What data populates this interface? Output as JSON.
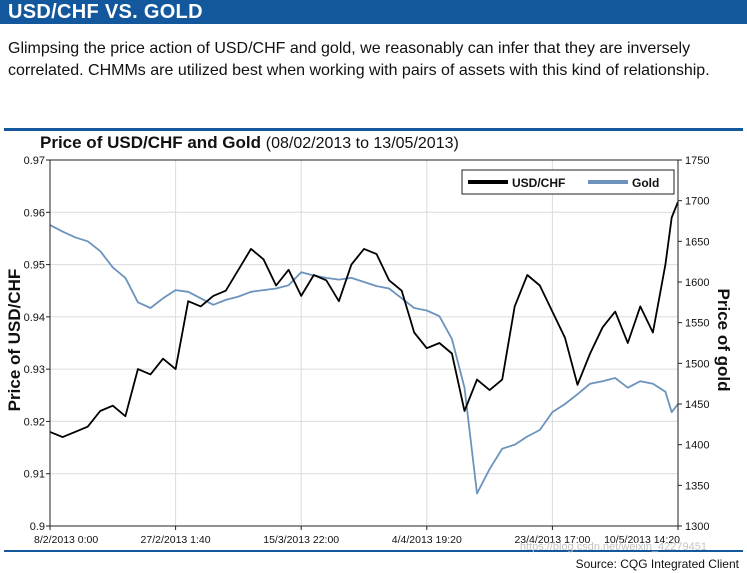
{
  "header": {
    "title": "USD/CHF VS. GOLD",
    "intro": "Glimpsing the price action of USD/CHF and gold, we reasonably can infer that they are inversely correlated. CHMMs are utilized best when working with pairs of assets with this kind of relationship."
  },
  "colors": {
    "banner": "#13589c",
    "usdchf": "#000000",
    "gold": "#6b93bd"
  },
  "chart_data": {
    "type": "line",
    "title": "Price of USD/CHF and Gold",
    "subtitle": "(08/02/2013 to 13/05/2013)",
    "ylabel": "Price of USD/CHF",
    "y2label": "Price of gold",
    "ylim": [
      0.9,
      0.97
    ],
    "y2lim": [
      1300,
      1750
    ],
    "yticks": [
      "0.97",
      "0.96",
      "0.95",
      "0.94",
      "0.93",
      "0.92",
      "0.91",
      "0.9"
    ],
    "y2ticks": [
      "1750",
      "1700",
      "1650",
      "1600",
      "1550",
      "1500",
      "1450",
      "1400",
      "1350",
      "1300"
    ],
    "xticks": [
      "8/2/2013 0:00",
      "27/2/2013 1:40",
      "15/3/2013 22:00",
      "4/4/2013 19:20",
      "23/4/2013 17:00",
      "10/5/2013 14:20"
    ],
    "xlim": [
      0,
      100
    ],
    "grid": true,
    "legend": "top-right",
    "series": [
      {
        "name": "USD/CHF",
        "axis": "left",
        "x": [
          0,
          2,
          4,
          6,
          8,
          10,
          12,
          14,
          16,
          18,
          20,
          22,
          24,
          26,
          28,
          30,
          32,
          34,
          36,
          38,
          40,
          42,
          44,
          46,
          48,
          50,
          52,
          54,
          56,
          58,
          60,
          62,
          64,
          66,
          68,
          70,
          72,
          74,
          76,
          78,
          80,
          82,
          84,
          86,
          88,
          90,
          92,
          94,
          96,
          98,
          99,
          100
        ],
        "values": [
          0.918,
          0.917,
          0.918,
          0.919,
          0.922,
          0.923,
          0.921,
          0.93,
          0.929,
          0.932,
          0.93,
          0.943,
          0.942,
          0.944,
          0.945,
          0.949,
          0.953,
          0.951,
          0.946,
          0.949,
          0.944,
          0.948,
          0.947,
          0.943,
          0.95,
          0.953,
          0.952,
          0.947,
          0.945,
          0.937,
          0.934,
          0.935,
          0.933,
          0.922,
          0.928,
          0.926,
          0.928,
          0.942,
          0.948,
          0.946,
          0.941,
          0.936,
          0.927,
          0.933,
          0.938,
          0.941,
          0.935,
          0.942,
          0.937,
          0.95,
          0.959,
          0.962
        ]
      },
      {
        "name": "Gold",
        "axis": "right",
        "x": [
          0,
          2,
          4,
          6,
          8,
          10,
          12,
          14,
          16,
          18,
          20,
          22,
          24,
          26,
          28,
          30,
          32,
          34,
          36,
          38,
          40,
          42,
          44,
          46,
          48,
          50,
          52,
          54,
          56,
          58,
          60,
          62,
          64,
          66,
          68,
          70,
          72,
          74,
          76,
          78,
          80,
          82,
          84,
          86,
          88,
          90,
          92,
          94,
          96,
          98,
          99,
          100
        ],
        "values": [
          1670,
          1662,
          1655,
          1650,
          1638,
          1618,
          1605,
          1575,
          1568,
          1580,
          1590,
          1588,
          1580,
          1572,
          1578,
          1582,
          1588,
          1590,
          1592,
          1596,
          1612,
          1608,
          1605,
          1603,
          1605,
          1600,
          1595,
          1592,
          1580,
          1568,
          1565,
          1558,
          1530,
          1470,
          1340,
          1370,
          1395,
          1400,
          1410,
          1418,
          1440,
          1450,
          1462,
          1475,
          1478,
          1482,
          1470,
          1478,
          1475,
          1465,
          1440,
          1450
        ]
      }
    ]
  },
  "source": "Source: CQG Integrated Client",
  "watermark": "https://blog.csdn.net/weixin_42279451"
}
